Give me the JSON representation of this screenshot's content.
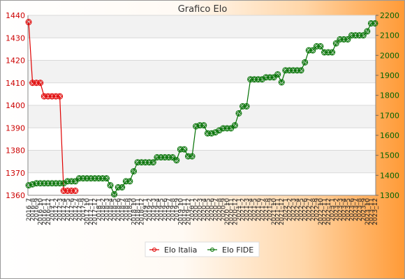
{
  "chart_data": {
    "type": "line",
    "title": "Grafico Elo",
    "y_left": {
      "ylim": [
        1360,
        1440
      ],
      "ticks": [
        1360,
        1370,
        1380,
        1390,
        1400,
        1410,
        1420,
        1430,
        1440
      ]
    },
    "y_right": {
      "ylim": [
        1300,
        2200
      ],
      "ticks": [
        1300,
        1400,
        1500,
        1600,
        1700,
        1800,
        1900,
        2000,
        2100,
        2200
      ]
    },
    "x_first_label": "2016_7",
    "x_last_label": "2023_12",
    "x_count": 90,
    "series": [
      {
        "name": "Elo Italia",
        "axis": "left",
        "color": "#e00000",
        "marker": "diamond",
        "values": [
          1437,
          1410,
          1410,
          1410,
          1404,
          1404,
          1404,
          1404,
          1404,
          1362,
          1362,
          1362,
          1362
        ]
      },
      {
        "name": "Elo FIDE",
        "axis": "right",
        "color": "#007000",
        "marker": "circle",
        "values": [
          1350,
          1355,
          1360,
          1360,
          1360,
          1360,
          1360,
          1360,
          1360,
          1360,
          1370,
          1370,
          1370,
          1385,
          1385,
          1385,
          1385,
          1385,
          1385,
          1385,
          1385,
          1350,
          1305,
          1340,
          1340,
          1370,
          1370,
          1420,
          1465,
          1465,
          1465,
          1465,
          1465,
          1490,
          1490,
          1490,
          1490,
          1490,
          1475,
          1530,
          1530,
          1495,
          1495,
          1645,
          1650,
          1650,
          1610,
          1610,
          1615,
          1625,
          1635,
          1635,
          1635,
          1650,
          1710,
          1745,
          1745,
          1880,
          1880,
          1880,
          1880,
          1890,
          1890,
          1890,
          1905,
          1865,
          1925,
          1925,
          1925,
          1925,
          1925,
          1965,
          2025,
          2025,
          2045,
          2045,
          2015,
          2015,
          2015,
          2060,
          2080,
          2080,
          2080,
          2100,
          2100,
          2100,
          2100,
          2120,
          2160,
          2160
        ]
      }
    ],
    "legend": "bottom-center"
  }
}
